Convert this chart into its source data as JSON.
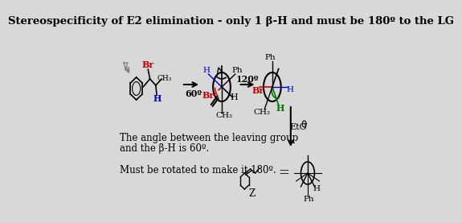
{
  "title": "Stereospecificity of E2 elimination - only 1 β-H and must be 180º to the LG",
  "bg_color": "#d8d8d8",
  "text_color": "#000000",
  "text1_line1": "The angle between the leaving group",
  "text1_line2": "and the β-H is 60º.",
  "text2": "Must be rotated to make it 180º.",
  "label_60": "60º",
  "label_120": "120º",
  "label_Z": "Z",
  "label_EtO": "EtO",
  "label_Br_red": "Br",
  "label_H_blue": "H",
  "label_Ph": "Ph",
  "red_color": "#cc0000",
  "blue_color": "#0000cc",
  "green_color": "#007700",
  "arrow_color": "#333333",
  "title_fontsize": 9.5,
  "body_fontsize": 8.5,
  "small_fontsize": 8.0
}
